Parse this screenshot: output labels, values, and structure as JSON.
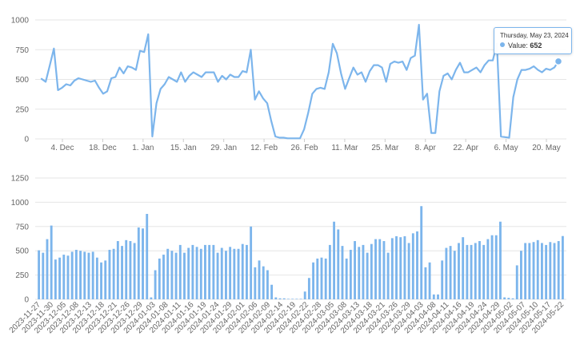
{
  "colors": {
    "series": "#7cb5ec",
    "grid": "#e6e6e6",
    "tick": "#666666"
  },
  "tooltip": {
    "date": "Thursday, May 23, 2024",
    "label": "Value:",
    "value": "652"
  },
  "chart_data": [
    {
      "type": "line",
      "title": "",
      "xlabel": "",
      "ylabel": "",
      "ylim": [
        0,
        1000
      ],
      "yticks": [
        "0",
        "250",
        "500",
        "750",
        "1000"
      ],
      "xticks": [
        "4. Dec",
        "18. Dec",
        "1. Jan",
        "15. Jan",
        "29. Jan",
        "12. Feb",
        "26. Feb",
        "11. Mar",
        "25. Mar",
        "8. Apr",
        "22. Apr",
        "6. May",
        "20. May"
      ],
      "series": [
        {
          "name": "Value",
          "values": [
            505,
            480,
            620,
            760,
            410,
            430,
            460,
            450,
            490,
            510,
            500,
            490,
            480,
            490,
            430,
            380,
            400,
            510,
            520,
            600,
            550,
            610,
            600,
            580,
            740,
            730,
            880,
            20,
            300,
            420,
            460,
            520,
            500,
            480,
            560,
            480,
            530,
            560,
            540,
            520,
            560,
            560,
            560,
            480,
            530,
            500,
            540,
            520,
            520,
            570,
            560,
            750,
            330,
            400,
            340,
            300,
            150,
            20,
            10,
            10,
            5,
            5,
            5,
            5,
            80,
            220,
            380,
            420,
            430,
            420,
            560,
            800,
            720,
            550,
            420,
            510,
            600,
            540,
            560,
            480,
            570,
            620,
            620,
            600,
            480,
            630,
            650,
            640,
            650,
            580,
            680,
            700,
            960,
            330,
            380,
            50,
            50,
            400,
            530,
            550,
            500,
            580,
            640,
            560,
            560,
            580,
            600,
            560,
            620,
            660,
            660,
            800,
            20,
            15,
            10,
            350,
            500,
            580,
            580,
            590,
            610,
            580,
            560,
            590,
            580,
            600,
            652
          ]
        }
      ]
    },
    {
      "type": "bar",
      "title": "",
      "xlabel": "",
      "ylabel": "",
      "ylim": [
        0,
        1250
      ],
      "yticks": [
        "0",
        "250",
        "500",
        "750",
        "1000",
        "1250"
      ],
      "xticks": [
        "2023-11-27",
        "2023-11-30",
        "2023-12-05",
        "2023-12-08",
        "2023-12-13",
        "2023-12-18",
        "2023-12-21",
        "2023-12-26",
        "2023-12-29",
        "2024-01-03",
        "2024-01-08",
        "2024-01-11",
        "2024-01-16",
        "2024-01-19",
        "2024-01-24",
        "2024-01-29",
        "2024-02-01",
        "2024-02-06",
        "2024-02-09",
        "2024-02-14",
        "2024-02-19",
        "2024-02-22",
        "2024-02-28",
        "2024-03-05",
        "2024-03-08",
        "2024-03-13",
        "2024-03-18",
        "2024-03-21",
        "2024-03-26",
        "2024-03-29",
        "2024-04-03",
        "2024-04-08",
        "2024-04-11",
        "2024-04-16",
        "2024-04-19",
        "2024-04-24",
        "2024-04-29",
        "2024-05-02",
        "2024-05-07",
        "2024-05-10",
        "2024-05-17",
        "2024-05-22"
      ],
      "series": [
        {
          "name": "Value",
          "values": [
            505,
            480,
            620,
            760,
            410,
            430,
            460,
            450,
            490,
            510,
            500,
            490,
            480,
            490,
            430,
            380,
            400,
            510,
            520,
            600,
            550,
            610,
            600,
            580,
            740,
            730,
            880,
            20,
            300,
            420,
            460,
            520,
            500,
            480,
            560,
            480,
            530,
            560,
            540,
            520,
            560,
            560,
            560,
            480,
            530,
            500,
            540,
            520,
            520,
            570,
            560,
            750,
            330,
            400,
            340,
            300,
            150,
            20,
            10,
            10,
            5,
            5,
            5,
            5,
            80,
            220,
            380,
            420,
            430,
            420,
            560,
            800,
            720,
            550,
            420,
            510,
            600,
            540,
            560,
            480,
            570,
            620,
            620,
            600,
            480,
            630,
            650,
            640,
            650,
            580,
            680,
            700,
            960,
            330,
            380,
            50,
            50,
            400,
            530,
            550,
            500,
            580,
            640,
            560,
            560,
            580,
            600,
            560,
            620,
            660,
            660,
            800,
            20,
            15,
            10,
            350,
            500,
            580,
            580,
            590,
            610,
            580,
            560,
            590,
            580,
            600,
            652
          ]
        }
      ]
    }
  ]
}
